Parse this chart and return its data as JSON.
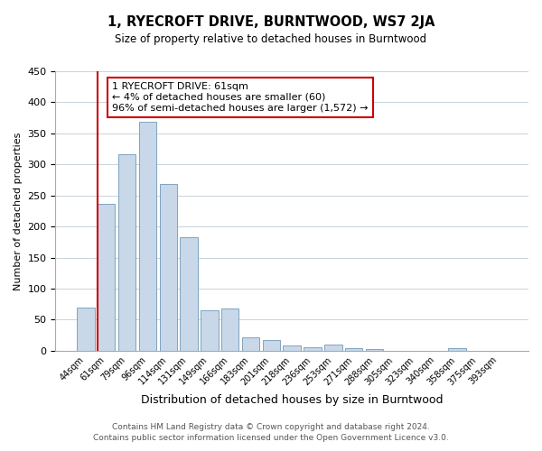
{
  "title": "1, RYECROFT DRIVE, BURNTWOOD, WS7 2JA",
  "subtitle": "Size of property relative to detached houses in Burntwood",
  "xlabel": "Distribution of detached houses by size in Burntwood",
  "ylabel": "Number of detached properties",
  "categories": [
    "44sqm",
    "61sqm",
    "79sqm",
    "96sqm",
    "114sqm",
    "131sqm",
    "149sqm",
    "166sqm",
    "183sqm",
    "201sqm",
    "218sqm",
    "236sqm",
    "253sqm",
    "271sqm",
    "288sqm",
    "305sqm",
    "323sqm",
    "340sqm",
    "358sqm",
    "375sqm",
    "393sqm"
  ],
  "values": [
    70,
    237,
    317,
    368,
    268,
    183,
    65,
    68,
    22,
    17,
    9,
    5,
    10,
    4,
    3,
    0,
    0,
    0,
    4,
    0,
    0
  ],
  "bar_color": "#c8d8e8",
  "bar_edge_color": "#7098b8",
  "highlight_index": 1,
  "highlight_line_color": "#cc0000",
  "ylim": [
    0,
    450
  ],
  "yticks": [
    0,
    50,
    100,
    150,
    200,
    250,
    300,
    350,
    400,
    450
  ],
  "annotation_text": "1 RYECROFT DRIVE: 61sqm\n← 4% of detached houses are smaller (60)\n96% of semi-detached houses are larger (1,572) →",
  "annotation_box_color": "#ffffff",
  "annotation_box_edge": "#cc0000",
  "footer": "Contains HM Land Registry data © Crown copyright and database right 2024.\nContains public sector information licensed under the Open Government Licence v3.0.",
  "bg_color": "#ffffff",
  "grid_color": "#c8d4dc"
}
